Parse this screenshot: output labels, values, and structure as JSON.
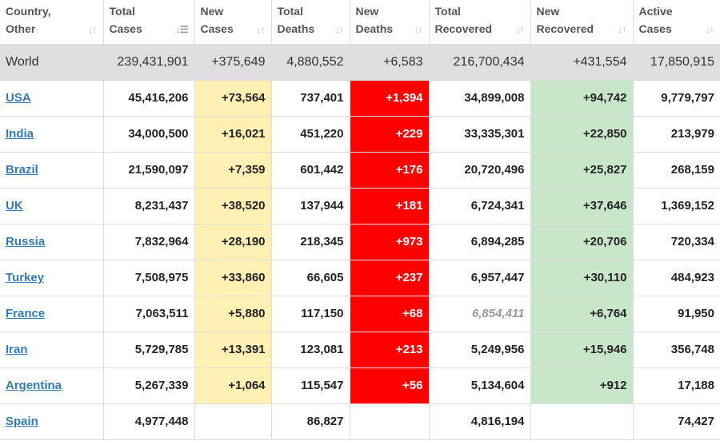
{
  "headers": [
    {
      "label": "Country,\nOther",
      "line1": "Country,",
      "line2": "Other",
      "sort_icon": "sort-icon"
    },
    {
      "label": "Total Cases",
      "line1": "Total",
      "line2": "Cases",
      "sort_icon": "sort-desc-icon"
    },
    {
      "label": "New Cases",
      "line1": "New",
      "line2": "Cases",
      "sort_icon": "sort-icon"
    },
    {
      "label": "Total Deaths",
      "line1": "Total",
      "line2": "Deaths",
      "sort_icon": "sort-icon"
    },
    {
      "label": "New Deaths",
      "line1": "New",
      "line2": "Deaths",
      "sort_icon": "sort-icon"
    },
    {
      "label": "Total Recovered",
      "line1": "Total",
      "line2": "Recovered",
      "sort_icon": "sort-icon"
    },
    {
      "label": "New Recovered",
      "line1": "New",
      "line2": "Recovered",
      "sort_icon": "sort-icon"
    },
    {
      "label": "Active Cases",
      "line1": "Active",
      "line2": "Cases",
      "sort_icon": "sort-icon"
    }
  ],
  "world": {
    "country": "World",
    "total_cases": "239,431,901",
    "new_cases": "+375,649",
    "total_deaths": "4,880,552",
    "new_deaths": "+6,583",
    "total_recovered": "216,700,434",
    "new_recovered": "+431,554",
    "active_cases": "17,850,915"
  },
  "rows": [
    {
      "country": "USA",
      "total_cases": "45,416,206",
      "new_cases": "+73,564",
      "total_deaths": "737,401",
      "new_deaths": "+1,394",
      "total_recovered": "34,899,008",
      "new_recovered": "+94,742",
      "active_cases": "9,779,797"
    },
    {
      "country": "India",
      "total_cases": "34,000,500",
      "new_cases": "+16,021",
      "total_deaths": "451,220",
      "new_deaths": "+229",
      "total_recovered": "33,335,301",
      "new_recovered": "+22,850",
      "active_cases": "213,979"
    },
    {
      "country": "Brazil",
      "total_cases": "21,590,097",
      "new_cases": "+7,359",
      "total_deaths": "601,442",
      "new_deaths": "+176",
      "total_recovered": "20,720,496",
      "new_recovered": "+25,827",
      "active_cases": "268,159"
    },
    {
      "country": "UK",
      "total_cases": "8,231,437",
      "new_cases": "+38,520",
      "total_deaths": "137,944",
      "new_deaths": "+181",
      "total_recovered": "6,724,341",
      "new_recovered": "+37,646",
      "active_cases": "1,369,152"
    },
    {
      "country": "Russia",
      "total_cases": "7,832,964",
      "new_cases": "+28,190",
      "total_deaths": "218,345",
      "new_deaths": "+973",
      "total_recovered": "6,894,285",
      "new_recovered": "+20,706",
      "active_cases": "720,334"
    },
    {
      "country": "Turkey",
      "total_cases": "7,508,975",
      "new_cases": "+33,860",
      "total_deaths": "66,605",
      "new_deaths": "+237",
      "total_recovered": "6,957,447",
      "new_recovered": "+30,110",
      "active_cases": "484,923"
    },
    {
      "country": "France",
      "total_cases": "7,063,511",
      "new_cases": "+5,880",
      "total_deaths": "117,150",
      "new_deaths": "+68",
      "total_recovered": "6,854,411",
      "new_recovered": "+6,764",
      "active_cases": "91,950",
      "recovered_estimated": true
    },
    {
      "country": "Iran",
      "total_cases": "5,729,785",
      "new_cases": "+13,391",
      "total_deaths": "123,081",
      "new_deaths": "+213",
      "total_recovered": "5,249,956",
      "new_recovered": "+15,946",
      "active_cases": "356,748"
    },
    {
      "country": "Argentina",
      "total_cases": "5,267,339",
      "new_cases": "+1,064",
      "total_deaths": "115,547",
      "new_deaths": "+56",
      "total_recovered": "5,134,604",
      "new_recovered": "+912",
      "active_cases": "17,188"
    },
    {
      "country": "Spain",
      "total_cases": "4,977,448",
      "new_cases": "",
      "total_deaths": "86,827",
      "new_deaths": "",
      "total_recovered": "4,816,194",
      "new_recovered": "",
      "active_cases": "74,427"
    }
  ],
  "colors": {
    "new_cases_bg": "#fff0b3",
    "new_deaths_bg": "#ff0000",
    "new_recovered_bg": "#c8e6c9",
    "world_row_bg": "#dfdfdf",
    "link": "#337ab7"
  }
}
